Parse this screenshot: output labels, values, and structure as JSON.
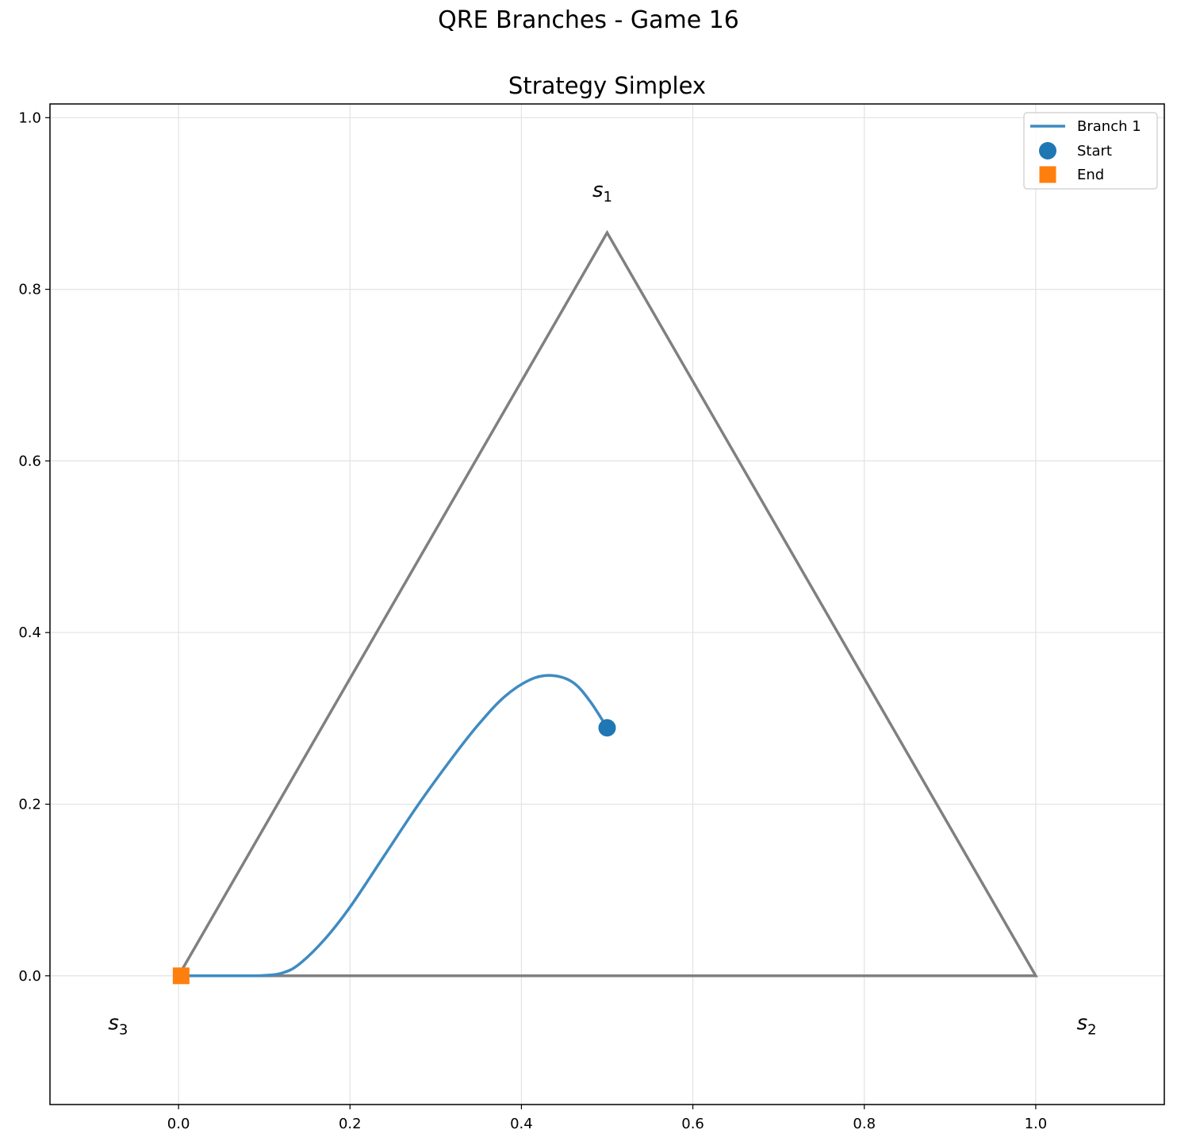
{
  "figure_title": "QRE Branches - Game 16",
  "chart_data": {
    "type": "line",
    "title": "Strategy Simplex",
    "xlabel": "",
    "ylabel": "",
    "xlim": [
      -0.15,
      1.15
    ],
    "ylim": [
      -0.15,
      1.016
    ],
    "grid": true,
    "xticks": [
      0.0,
      0.2,
      0.4,
      0.6,
      0.8,
      1.0
    ],
    "yticks": [
      0.0,
      0.2,
      0.4,
      0.6,
      0.8,
      1.0
    ],
    "xtick_labels": [
      "0.0",
      "0.2",
      "0.4",
      "0.6",
      "0.8",
      "1.0"
    ],
    "ytick_labels": [
      "0.0",
      "0.2",
      "0.4",
      "0.6",
      "0.8",
      "1.0"
    ],
    "legend_position": "top-right",
    "simplex": {
      "vertices": [
        [
          0.0,
          0.0
        ],
        [
          1.0,
          0.0
        ],
        [
          0.5,
          0.866
        ]
      ],
      "color": "#808080"
    },
    "vertex_labels": [
      {
        "base": "s",
        "sub": "1",
        "x": 0.5,
        "y": 0.915
      },
      {
        "base": "s",
        "sub": "2",
        "x": 1.065,
        "y": -0.055
      },
      {
        "base": "s",
        "sub": "3",
        "x": -0.065,
        "y": -0.055
      }
    ],
    "series": [
      {
        "name": "Branch 1",
        "color": "#3f8bc1",
        "x": [
          0.5,
          0.48,
          0.46,
          0.435,
          0.41,
          0.38,
          0.35,
          0.32,
          0.28,
          0.24,
          0.2,
          0.17,
          0.14,
          0.12,
          0.1,
          0.08,
          0.05,
          0.02,
          0.0
        ],
        "y": [
          0.289,
          0.32,
          0.342,
          0.35,
          0.345,
          0.325,
          0.293,
          0.255,
          0.2,
          0.14,
          0.08,
          0.042,
          0.013,
          0.003,
          0.0005,
          0.0,
          0.0,
          0.0,
          0.0
        ]
      }
    ],
    "markers": [
      {
        "name": "Start",
        "shape": "circle",
        "color": "#1f77b4",
        "x": 0.5,
        "y": 0.289
      },
      {
        "name": "End",
        "shape": "square",
        "color": "#ff7f0e",
        "x": 0.003,
        "y": 0.0
      }
    ]
  }
}
